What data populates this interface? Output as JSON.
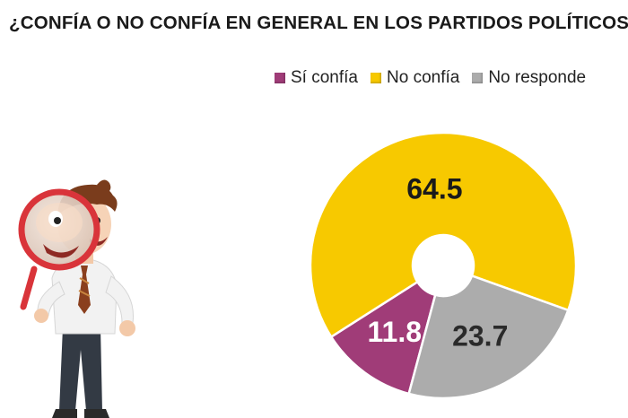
{
  "title": "¿CONFÍA O NO CONFÍA EN GENERAL EN LOS PARTIDOS POLÍTICOS?",
  "colors": {
    "si": "#a03c78",
    "no": "#f7c900",
    "nr": "#acacac",
    "text": "#1a1a1a"
  },
  "chart_data": {
    "type": "pie",
    "variant": "donut",
    "title": "¿CONFÍA O NO CONFÍA EN GENERAL EN LOS PARTIDOS POLÍTICOS?",
    "legend_position": "top-right",
    "series": [
      {
        "name": "Sí confía",
        "value": 11.8,
        "label": "11.8",
        "color": "#a03c78"
      },
      {
        "name": "No confía",
        "value": 64.5,
        "label": "64.5",
        "color": "#f7c900"
      },
      {
        "name": "No responde",
        "value": 23.7,
        "label": "23.7",
        "color": "#acacac"
      }
    ]
  },
  "illustration": {
    "icon": "man-with-magnifying-glass-illustration"
  }
}
